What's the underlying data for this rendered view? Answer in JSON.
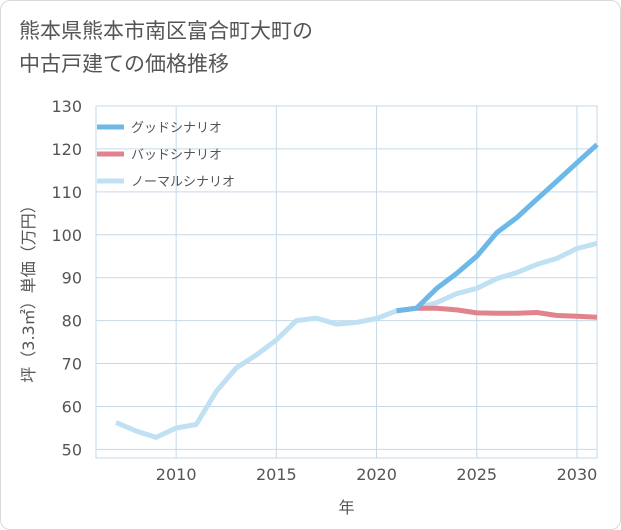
{
  "title_lines": [
    "熊本県熊本市南区富合町大町の",
    "中古戸建ての価格推移"
  ],
  "chart_data": {
    "type": "line",
    "xlabel": "年",
    "ylabel": "坪（3.3㎡）単価（万円）",
    "xlim": [
      2006,
      2031
    ],
    "ylim": [
      48,
      130
    ],
    "xticks": [
      2010,
      2015,
      2020,
      2025,
      2030
    ],
    "yticks": [
      50,
      60,
      70,
      80,
      90,
      100,
      110,
      120,
      130
    ],
    "grid": true,
    "legend_position": "top-left",
    "series": [
      {
        "name": "グッドシナリオ",
        "color": "#6cb8e9",
        "x": [
          2021,
          2022,
          2023,
          2024,
          2025,
          2026,
          2027,
          2028,
          2029,
          2030,
          2031
        ],
        "y": [
          82.3,
          82.9,
          87.5,
          91,
          95,
          100.5,
          104,
          108.3,
          112.5,
          116.8,
          121
        ]
      },
      {
        "name": "バッドシナリオ",
        "color": "#e0838d",
        "x": [
          2021,
          2022,
          2023,
          2024,
          2025,
          2026,
          2027,
          2028,
          2029,
          2030,
          2031
        ],
        "y": [
          82.3,
          82.9,
          82.9,
          82.5,
          81.8,
          81.7,
          81.7,
          81.9,
          81.2,
          81,
          80.8
        ]
      },
      {
        "name": "ノーマルシナリオ",
        "color": "#bfe1f3",
        "x": [
          2007,
          2008,
          2009,
          2010,
          2011,
          2012,
          2013,
          2014,
          2015,
          2016,
          2017,
          2018,
          2019,
          2020,
          2021,
          2022,
          2023,
          2024,
          2025,
          2026,
          2027,
          2028,
          2029,
          2030,
          2031
        ],
        "y": [
          56.3,
          54.3,
          52.8,
          55,
          55.8,
          63.5,
          69,
          72,
          75.5,
          80,
          80.6,
          79.2,
          79.6,
          80.5,
          82.3,
          82.9,
          84.2,
          86.3,
          87.5,
          89.8,
          91.2,
          93.1,
          94.5,
          96.8,
          98
        ]
      }
    ]
  }
}
